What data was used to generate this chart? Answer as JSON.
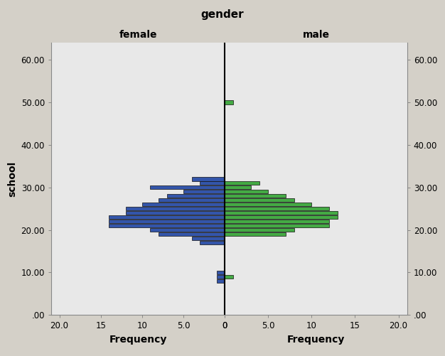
{
  "title": "gender",
  "left_label": "female",
  "right_label": "male",
  "ylabel_left": "school",
  "ylabel_right": "school",
  "xlabel_left": "Frequency",
  "xlabel_right": "Frequency",
  "bg_color": "#e8e8e8",
  "fig_bg_color": "#d4d0c8",
  "bar_color_female": "#3355aa",
  "bar_color_male": "#44aa44",
  "bar_edgecolor": "#111111",
  "ylim_min": 0,
  "ylim_max": 64,
  "xlim_max": 21,
  "ytick_positions": [
    0,
    10,
    20,
    30,
    40,
    50,
    60
  ],
  "ytick_labels": [
    ".00",
    "10.00",
    "20.00",
    "30.00",
    "40.00",
    "50.00",
    "60.00"
  ],
  "xtick_positions": [
    0,
    5,
    10,
    15,
    20
  ],
  "xtick_labels_left": [
    "0",
    "5.0",
    "10",
    "15",
    "20.0"
  ],
  "xtick_labels_right": [
    "0",
    "5.0",
    "10",
    "15",
    "20.0"
  ],
  "school_centers": [
    8,
    9,
    10,
    11,
    15,
    17,
    18,
    19,
    20,
    21,
    22,
    23,
    24,
    25,
    26,
    27,
    28,
    29,
    30,
    31,
    32,
    33,
    50
  ],
  "female_freq": [
    1,
    1,
    1,
    0,
    0,
    3,
    4,
    8,
    9,
    14,
    14,
    14,
    12,
    12,
    10,
    8,
    7,
    5,
    9,
    3,
    4,
    0,
    0
  ],
  "male_freq": [
    0,
    1,
    0,
    0,
    0,
    0,
    0,
    7,
    8,
    12,
    12,
    13,
    13,
    12,
    10,
    8,
    7,
    5,
    3,
    4,
    0,
    0,
    1
  ],
  "bar_height": 0.92,
  "font_size_title": 11,
  "font_size_labels": 10,
  "font_size_ticks": 8.5
}
